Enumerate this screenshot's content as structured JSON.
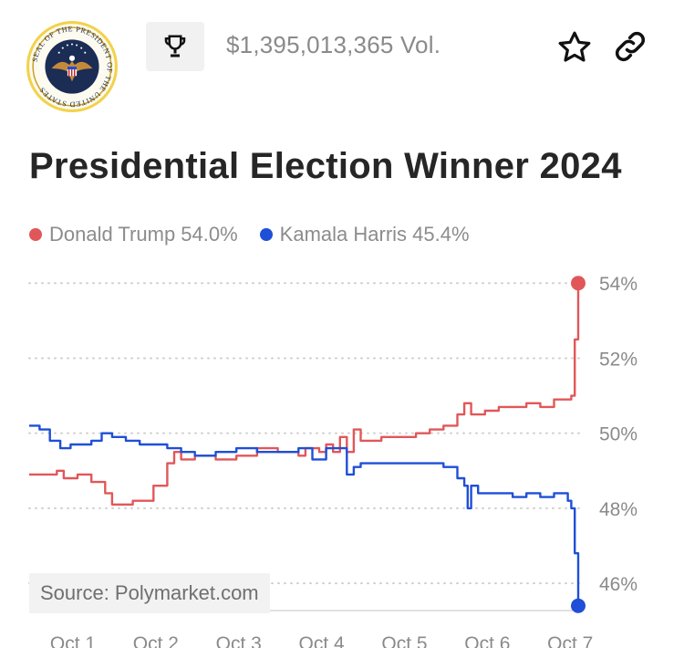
{
  "header": {
    "logo": "presidential-seal",
    "logo_text": "SEAL OF THE PRESIDENT OF THE UNITED STATES",
    "trophy_icon": "trophy-icon",
    "volume": "$1,395,013,365 Vol.",
    "star_icon": "star-icon",
    "link_icon": "link-icon"
  },
  "title": "Presidential Election Winner 2024",
  "legend": [
    {
      "label": "Donald Trump 54.0%",
      "color": "#e15759"
    },
    {
      "label": "Kamala Harris 45.4%",
      "color": "#1f4fd6"
    }
  ],
  "source": "Source: Polymarket.com",
  "chart_data": {
    "type": "line",
    "x_ticks": [
      "Oct 1",
      "Oct 2",
      "Oct 3",
      "Oct 4",
      "Oct 5",
      "Oct 6",
      "Oct 7"
    ],
    "y_ticks": [
      "46%",
      "48%",
      "50%",
      "52%",
      "54%"
    ],
    "ylim": [
      45.2,
      54.2
    ],
    "xlim": [
      "Oct 1 00:00",
      "Oct 7 15:00"
    ],
    "grid": true,
    "legend_position": "top-left",
    "series": [
      {
        "name": "Donald Trump",
        "color": "#e15759",
        "end_label": "54.0%",
        "points": [
          [
            "Oct 1 00:00",
            48.9
          ],
          [
            "Oct 1 06:00",
            48.9
          ],
          [
            "Oct 1 08:00",
            49.0
          ],
          [
            "Oct 1 10:00",
            48.8
          ],
          [
            "Oct 1 14:00",
            48.9
          ],
          [
            "Oct 1 18:00",
            48.7
          ],
          [
            "Oct 1 22:00",
            48.4
          ],
          [
            "Oct 2 00:00",
            48.1
          ],
          [
            "Oct 2 06:00",
            48.2
          ],
          [
            "Oct 2 10:00",
            48.2
          ],
          [
            "Oct 2 12:00",
            48.6
          ],
          [
            "Oct 2 14:00",
            48.6
          ],
          [
            "Oct 2 16:00",
            49.2
          ],
          [
            "Oct 2 18:00",
            49.5
          ],
          [
            "Oct 2 20:00",
            49.3
          ],
          [
            "Oct 3 00:00",
            49.4
          ],
          [
            "Oct 3 06:00",
            49.3
          ],
          [
            "Oct 3 12:00",
            49.4
          ],
          [
            "Oct 3 18:00",
            49.6
          ],
          [
            "Oct 4 00:00",
            49.5
          ],
          [
            "Oct 4 06:00",
            49.4
          ],
          [
            "Oct 4 08:00",
            49.6
          ],
          [
            "Oct 4 12:00",
            49.5
          ],
          [
            "Oct 4 14:00",
            49.7
          ],
          [
            "Oct 4 16:00",
            49.5
          ],
          [
            "Oct 4 18:00",
            49.9
          ],
          [
            "Oct 4 20:00",
            49.5
          ],
          [
            "Oct 4 22:00",
            50.1
          ],
          [
            "Oct 5 00:00",
            49.8
          ],
          [
            "Oct 5 06:00",
            49.9
          ],
          [
            "Oct 5 12:00",
            49.9
          ],
          [
            "Oct 5 16:00",
            50.0
          ],
          [
            "Oct 5 20:00",
            50.1
          ],
          [
            "Oct 6 00:00",
            50.2
          ],
          [
            "Oct 6 04:00",
            50.5
          ],
          [
            "Oct 6 06:00",
            50.8
          ],
          [
            "Oct 6 08:00",
            50.5
          ],
          [
            "Oct 6 12:00",
            50.6
          ],
          [
            "Oct 6 16:00",
            50.7
          ],
          [
            "Oct 6 20:00",
            50.7
          ],
          [
            "Oct 7 00:00",
            50.8
          ],
          [
            "Oct 7 04:00",
            50.7
          ],
          [
            "Oct 7 08:00",
            50.9
          ],
          [
            "Oct 7 12:00",
            50.9
          ],
          [
            "Oct 7 13:00",
            51.0
          ],
          [
            "Oct 7 14:00",
            52.5
          ],
          [
            "Oct 7 15:00",
            54.0
          ]
        ]
      },
      {
        "name": "Kamala Harris",
        "color": "#1f4fd6",
        "end_label": "45.4%",
        "points": [
          [
            "Oct 1 00:00",
            50.2
          ],
          [
            "Oct 1 03:00",
            50.1
          ],
          [
            "Oct 1 06:00",
            49.8
          ],
          [
            "Oct 1 09:00",
            49.6
          ],
          [
            "Oct 1 12:00",
            49.7
          ],
          [
            "Oct 1 18:00",
            49.8
          ],
          [
            "Oct 1 21:00",
            50.0
          ],
          [
            "Oct 2 00:00",
            49.9
          ],
          [
            "Oct 2 04:00",
            49.8
          ],
          [
            "Oct 2 08:00",
            49.7
          ],
          [
            "Oct 2 12:00",
            49.7
          ],
          [
            "Oct 2 16:00",
            49.6
          ],
          [
            "Oct 2 20:00",
            49.5
          ],
          [
            "Oct 3 00:00",
            49.4
          ],
          [
            "Oct 3 06:00",
            49.5
          ],
          [
            "Oct 3 12:00",
            49.6
          ],
          [
            "Oct 3 18:00",
            49.5
          ],
          [
            "Oct 4 00:00",
            49.5
          ],
          [
            "Oct 4 06:00",
            49.6
          ],
          [
            "Oct 4 10:00",
            49.3
          ],
          [
            "Oct 4 14:00",
            49.6
          ],
          [
            "Oct 4 18:00",
            49.6
          ],
          [
            "Oct 4 20:00",
            48.9
          ],
          [
            "Oct 4 22:00",
            49.1
          ],
          [
            "Oct 5 00:00",
            49.2
          ],
          [
            "Oct 5 06:00",
            49.2
          ],
          [
            "Oct 5 12:00",
            49.2
          ],
          [
            "Oct 5 18:00",
            49.2
          ],
          [
            "Oct 6 00:00",
            49.1
          ],
          [
            "Oct 6 04:00",
            48.8
          ],
          [
            "Oct 6 06:00",
            48.6
          ],
          [
            "Oct 6 07:00",
            48.0
          ],
          [
            "Oct 6 08:00",
            48.6
          ],
          [
            "Oct 6 10:00",
            48.4
          ],
          [
            "Oct 6 16:00",
            48.4
          ],
          [
            "Oct 6 20:00",
            48.3
          ],
          [
            "Oct 7 00:00",
            48.4
          ],
          [
            "Oct 7 04:00",
            48.3
          ],
          [
            "Oct 7 08:00",
            48.4
          ],
          [
            "Oct 7 12:00",
            48.2
          ],
          [
            "Oct 7 13:00",
            48.0
          ],
          [
            "Oct 7 14:00",
            46.8
          ],
          [
            "Oct 7 15:00",
            45.4
          ]
        ]
      }
    ]
  }
}
